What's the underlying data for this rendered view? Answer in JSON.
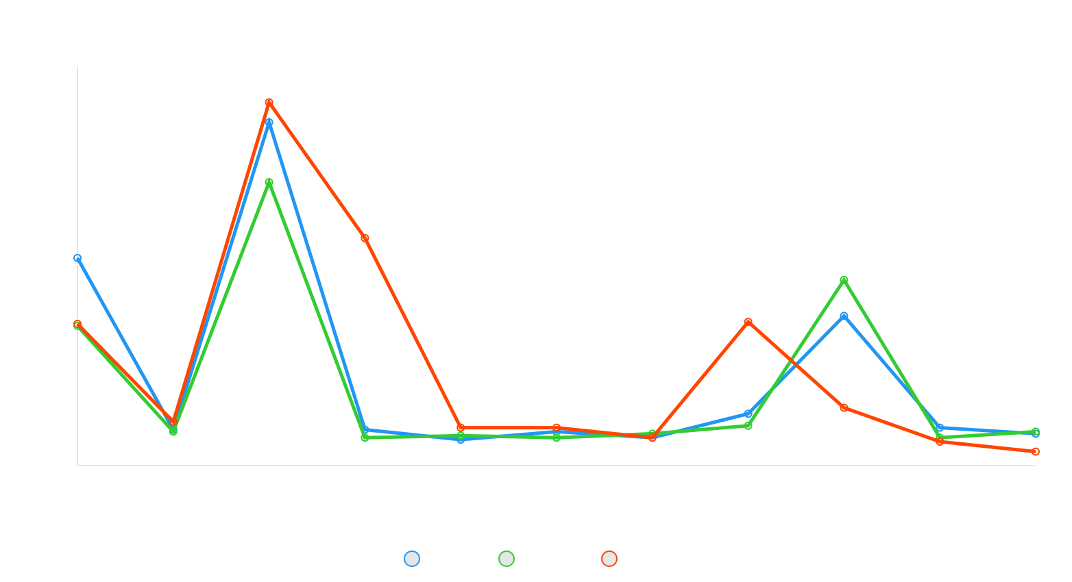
{
  "chart_data": {
    "type": "line",
    "categories": [
      "",
      "",
      "",
      "",
      "",
      "",
      "",
      "",
      "",
      "",
      ""
    ],
    "ylim": [
      0,
      100
    ],
    "grid": false,
    "legend_position": "bottom",
    "series": [
      {
        "name": "",
        "color": "#2196f3",
        "values": [
          52,
          9,
          86,
          9,
          6.5,
          8.5,
          7,
          13,
          37.5,
          9.5,
          8
        ]
      },
      {
        "name": "",
        "color": "#33cc33",
        "values": [
          35,
          8.5,
          71,
          7,
          7.5,
          7,
          8,
          10,
          46.5,
          7,
          8.5
        ]
      },
      {
        "name": "",
        "color": "#ff4500",
        "values": [
          35.5,
          11,
          91,
          57,
          9.5,
          9.5,
          7,
          36,
          14.5,
          6,
          3.5
        ]
      }
    ]
  }
}
